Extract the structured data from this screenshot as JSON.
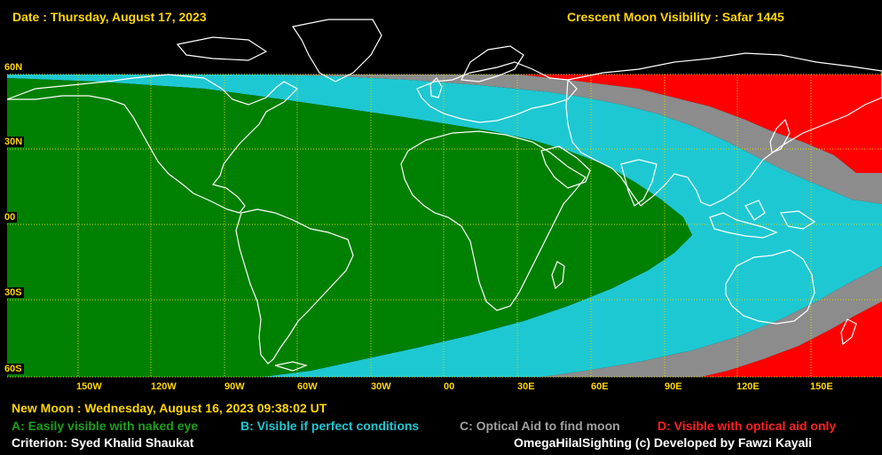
{
  "header": {
    "date": "Date : Thursday, August 17, 2023",
    "title": "Crescent Moon Visibility : Safar  1445"
  },
  "axes": {
    "lat_labels": [
      "60N",
      "30N",
      "00",
      "30S",
      "60S"
    ],
    "lon_labels": [
      "150W",
      "120W",
      "90W",
      "60W",
      "30W",
      "00",
      "30E",
      "60E",
      "90E",
      "120E",
      "150E"
    ]
  },
  "colors": {
    "zone_a": "#008000",
    "zone_b": "#1ec8d2",
    "zone_c": "#8c8c8c",
    "zone_d": "#ff0000",
    "grid": "#d8d800",
    "coast": "#ffffff"
  },
  "footer": {
    "new_moon": "New Moon : Wednesday, August 16, 2023  09:38:02  UT",
    "legend_a": "A: Easily visible with naked eye",
    "legend_b": "B: Visible if perfect conditions",
    "legend_c": "C: Optical Aid to find moon",
    "legend_d": "D: Visible with optical aid only",
    "criterion": "Criterion: Syed Khalid Shaukat",
    "credit": "OmegaHilalSighting  (c)  Developed by Fawzi Kayali"
  }
}
